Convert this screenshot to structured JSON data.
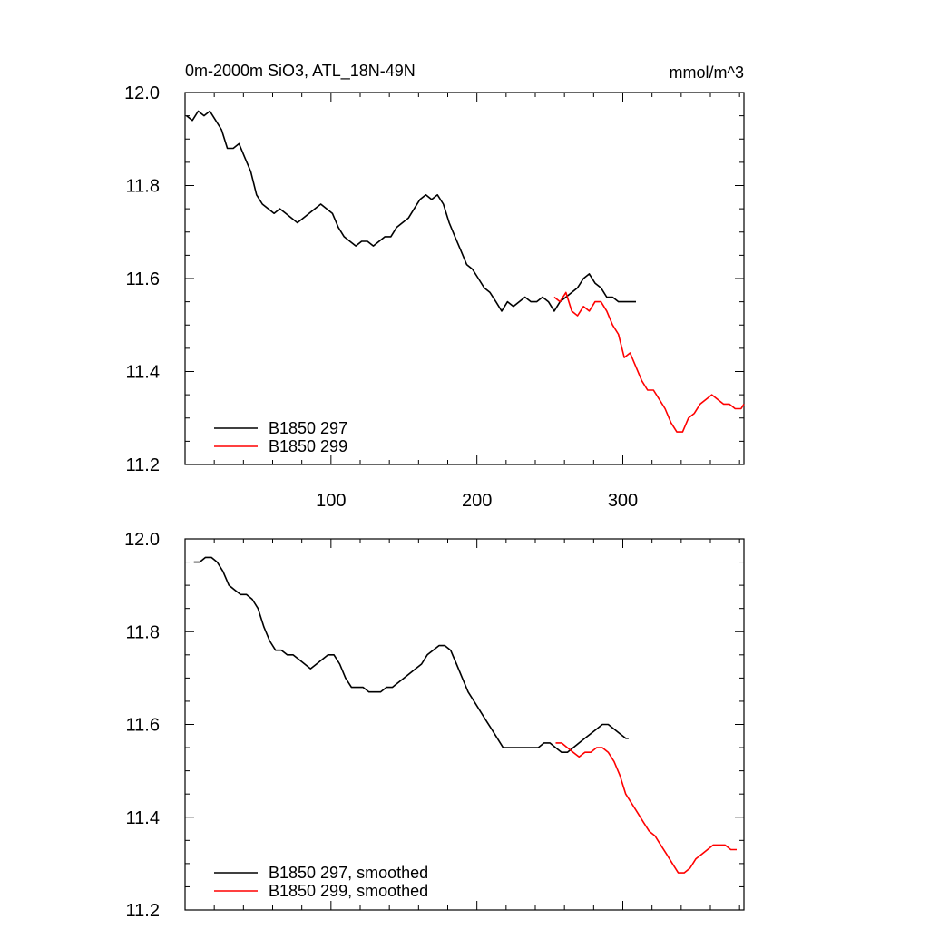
{
  "chart_data": [
    {
      "type": "line",
      "title": "0m-2000m SiO3, ATL_18N-49N",
      "units": "mmol/m^3",
      "xlim": [
        0,
        383
      ],
      "ylim": [
        11.2,
        12.0
      ],
      "xticks": [
        100,
        200,
        300
      ],
      "xtick_labels": [
        "100",
        "200",
        "300"
      ],
      "yticks": [
        11.2,
        11.4,
        11.6,
        11.8,
        12.0
      ],
      "ytick_labels": [
        "11.2",
        "11.4",
        "11.6",
        "11.8",
        "12.0"
      ],
      "legend_position": "bottom-left",
      "series": [
        {
          "name": "B1850 297",
          "color": "#000000",
          "x": [
            1,
            5,
            9,
            13,
            17,
            21,
            25,
            29,
            33,
            37,
            41,
            45,
            49,
            53,
            57,
            61,
            65,
            69,
            73,
            77,
            81,
            85,
            89,
            93,
            97,
            101,
            105,
            109,
            113,
            117,
            121,
            125,
            129,
            133,
            137,
            141,
            145,
            149,
            153,
            157,
            161,
            165,
            169,
            173,
            177,
            181,
            185,
            189,
            193,
            197,
            201,
            205,
            209,
            213,
            217,
            221,
            225,
            229,
            233,
            237,
            241,
            245,
            249,
            253,
            257,
            261,
            265,
            269,
            273,
            277,
            281,
            285,
            289,
            293,
            297,
            301,
            305,
            309
          ],
          "y": [
            11.95,
            11.94,
            11.96,
            11.95,
            11.96,
            11.94,
            11.92,
            11.88,
            11.88,
            11.89,
            11.86,
            11.83,
            11.78,
            11.76,
            11.75,
            11.74,
            11.75,
            11.74,
            11.73,
            11.72,
            11.73,
            11.74,
            11.75,
            11.76,
            11.75,
            11.74,
            11.71,
            11.69,
            11.68,
            11.67,
            11.68,
            11.68,
            11.67,
            11.68,
            11.69,
            11.69,
            11.71,
            11.72,
            11.73,
            11.75,
            11.77,
            11.78,
            11.77,
            11.78,
            11.76,
            11.72,
            11.69,
            11.66,
            11.63,
            11.62,
            11.6,
            11.58,
            11.57,
            11.55,
            11.53,
            11.55,
            11.54,
            11.55,
            11.56,
            11.55,
            11.55,
            11.56,
            11.55,
            11.53,
            11.55,
            11.56,
            11.57,
            11.58,
            11.6,
            11.61,
            11.59,
            11.58,
            11.56,
            11.56,
            11.55,
            11.55,
            11.55,
            11.55
          ]
        },
        {
          "name": "B1850 299",
          "color": "#ff0000",
          "x": [
            253,
            257,
            261,
            265,
            269,
            273,
            277,
            281,
            285,
            289,
            293,
            297,
            301,
            305,
            309,
            313,
            317,
            321,
            325,
            329,
            333,
            337,
            341,
            345,
            349,
            353,
            357,
            361,
            365,
            369,
            373,
            377,
            381,
            383
          ],
          "y": [
            11.56,
            11.55,
            11.57,
            11.53,
            11.52,
            11.54,
            11.53,
            11.55,
            11.55,
            11.53,
            11.5,
            11.48,
            11.43,
            11.44,
            11.41,
            11.38,
            11.36,
            11.36,
            11.34,
            11.32,
            11.29,
            11.27,
            11.27,
            11.3,
            11.31,
            11.33,
            11.34,
            11.35,
            11.34,
            11.33,
            11.33,
            11.32,
            11.32,
            11.33
          ]
        }
      ]
    },
    {
      "type": "line",
      "title": "",
      "xlim": [
        0,
        383
      ],
      "ylim": [
        11.2,
        12.0
      ],
      "xticks": [
        100,
        200,
        300
      ],
      "xtick_labels": [],
      "yticks": [
        11.2,
        11.4,
        11.6,
        11.8,
        12.0
      ],
      "ytick_labels": [
        "11.2",
        "11.4",
        "11.6",
        "11.8",
        "12.0"
      ],
      "legend_position": "bottom-left",
      "series": [
        {
          "name": "B1850 297, smoothed",
          "color": "#000000",
          "x": [
            6,
            10,
            14,
            18,
            22,
            26,
            30,
            34,
            38,
            42,
            46,
            50,
            54,
            58,
            62,
            66,
            70,
            74,
            78,
            82,
            86,
            90,
            94,
            98,
            102,
            106,
            110,
            114,
            118,
            122,
            126,
            130,
            134,
            138,
            142,
            146,
            150,
            154,
            158,
            162,
            166,
            170,
            174,
            178,
            182,
            186,
            190,
            194,
            198,
            202,
            206,
            210,
            214,
            218,
            222,
            226,
            230,
            234,
            238,
            242,
            246,
            250,
            254,
            258,
            262,
            266,
            270,
            274,
            278,
            282,
            286,
            290,
            294,
            298,
            302,
            304
          ],
          "y": [
            11.95,
            11.95,
            11.96,
            11.96,
            11.95,
            11.93,
            11.9,
            11.89,
            11.88,
            11.88,
            11.87,
            11.85,
            11.81,
            11.78,
            11.76,
            11.76,
            11.75,
            11.75,
            11.74,
            11.73,
            11.72,
            11.73,
            11.74,
            11.75,
            11.75,
            11.73,
            11.7,
            11.68,
            11.68,
            11.68,
            11.67,
            11.67,
            11.67,
            11.68,
            11.68,
            11.69,
            11.7,
            11.71,
            11.72,
            11.73,
            11.75,
            11.76,
            11.77,
            11.77,
            11.76,
            11.73,
            11.7,
            11.67,
            11.65,
            11.63,
            11.61,
            11.59,
            11.57,
            11.55,
            11.55,
            11.55,
            11.55,
            11.55,
            11.55,
            11.55,
            11.56,
            11.56,
            11.55,
            11.54,
            11.54,
            11.55,
            11.56,
            11.57,
            11.58,
            11.59,
            11.6,
            11.6,
            11.59,
            11.58,
            11.57,
            11.57
          ]
        },
        {
          "name": "B1850 299, smoothed",
          "color": "#ff0000",
          "x": [
            254,
            258,
            262,
            266,
            270,
            274,
            278,
            282,
            286,
            290,
            294,
            298,
            302,
            306,
            310,
            314,
            318,
            322,
            326,
            330,
            334,
            338,
            342,
            346,
            350,
            354,
            358,
            362,
            366,
            370,
            374,
            378
          ],
          "y": [
            11.56,
            11.56,
            11.55,
            11.54,
            11.53,
            11.54,
            11.54,
            11.55,
            11.55,
            11.54,
            11.52,
            11.49,
            11.45,
            11.43,
            11.41,
            11.39,
            11.37,
            11.36,
            11.34,
            11.32,
            11.3,
            11.28,
            11.28,
            11.29,
            11.31,
            11.32,
            11.33,
            11.34,
            11.34,
            11.34,
            11.33,
            11.33
          ]
        }
      ]
    }
  ]
}
